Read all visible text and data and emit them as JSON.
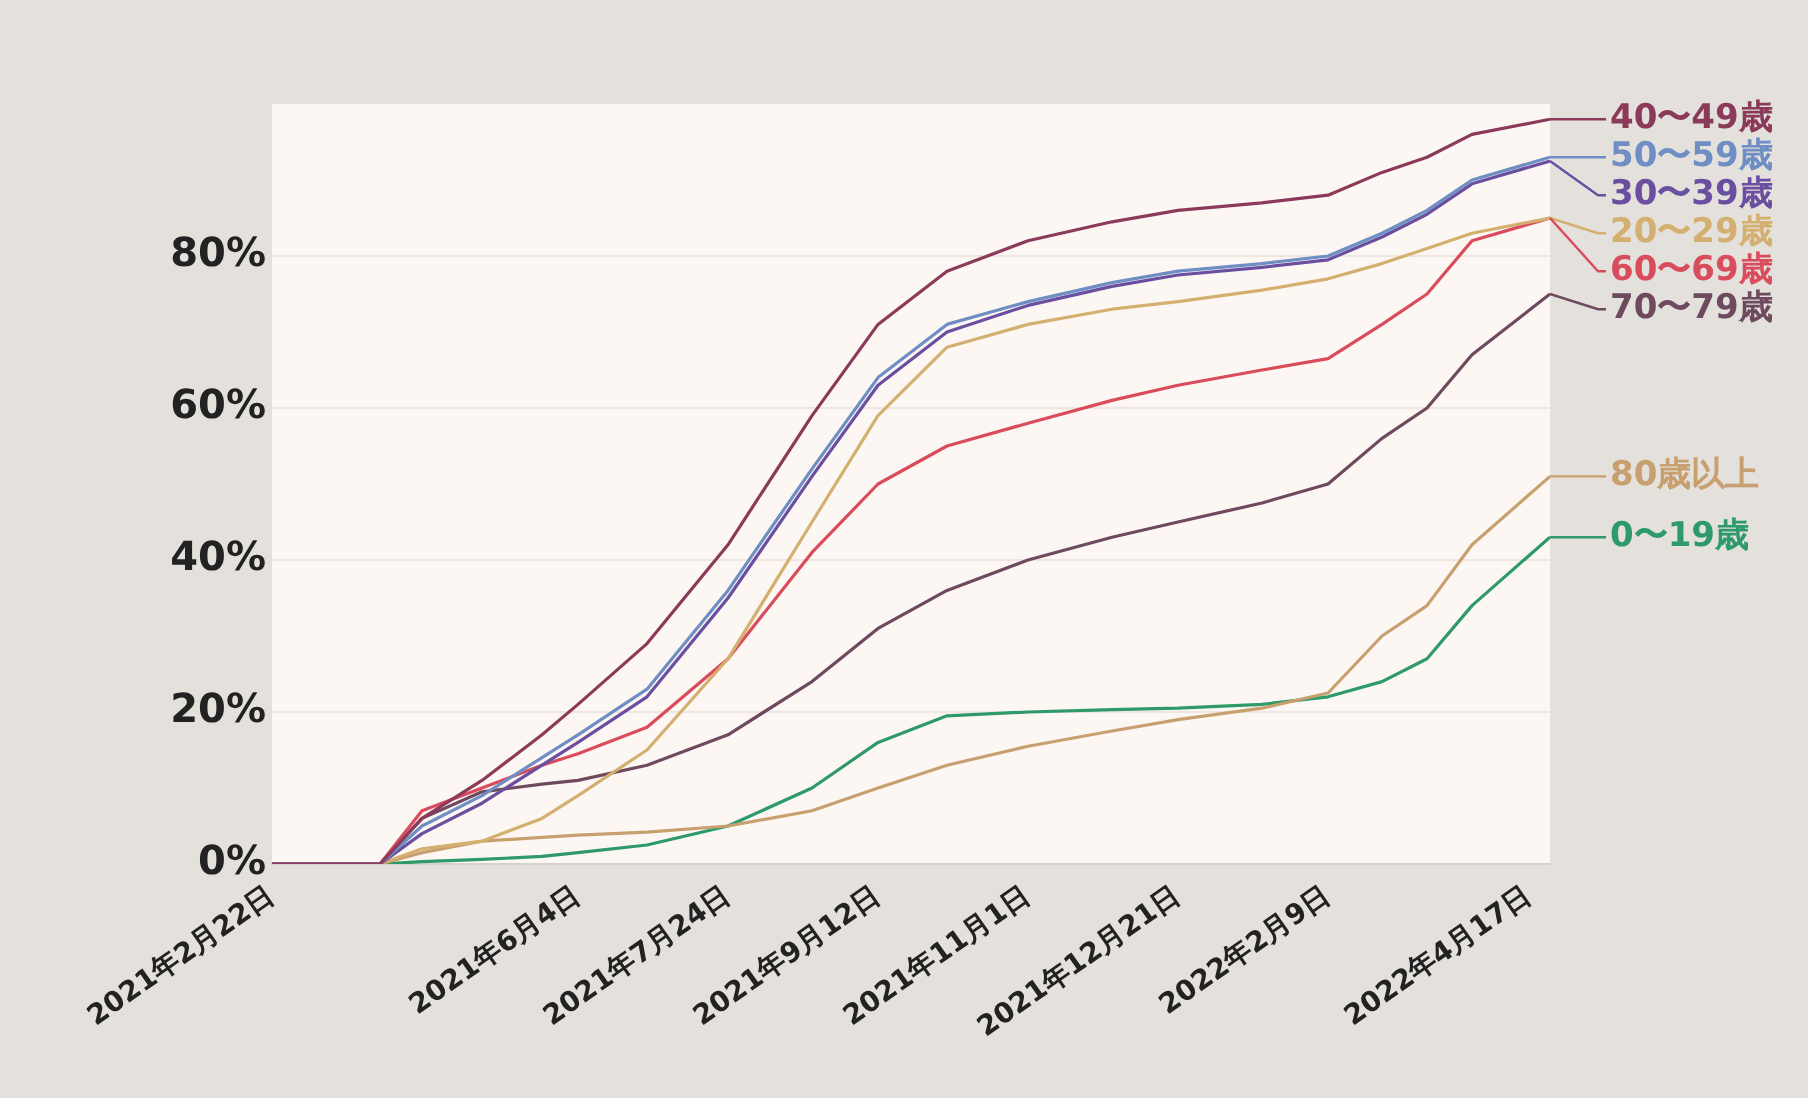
{
  "chart_data": {
    "type": "line",
    "x": [
      "2021-02-22",
      "2021-03-30",
      "2021-04-13",
      "2021-05-03",
      "2021-05-23",
      "2021-06-04",
      "2021-06-27",
      "2021-07-24",
      "2021-08-21",
      "2021-09-12",
      "2021-10-05",
      "2021-11-01",
      "2021-11-29",
      "2021-12-21",
      "2022-01-18",
      "2022-02-09",
      "2022-02-27",
      "2022-03-14",
      "2022-03-29",
      "2022-04-24"
    ],
    "series": [
      {
        "name": "40〜49歳",
        "color": "#8b3a5a",
        "values": [
          0,
          0,
          6,
          11,
          17,
          21,
          29,
          42,
          59,
          71,
          78,
          82,
          84.5,
          86,
          87,
          88,
          91,
          93,
          96,
          98
        ]
      },
      {
        "name": "50〜59歳",
        "color": "#6f8fc4",
        "values": [
          0,
          0,
          5,
          9,
          14,
          17,
          23,
          36,
          52,
          64,
          71,
          74,
          76.5,
          78,
          79,
          80,
          83,
          86,
          90,
          93
        ]
      },
      {
        "name": "30〜39歳",
        "color": "#6a4fa0",
        "values": [
          0,
          0,
          4,
          8,
          13,
          16,
          22,
          35,
          51,
          63,
          70,
          73.5,
          76,
          77.5,
          78.5,
          79.5,
          82.5,
          85.5,
          89.5,
          92.5
        ]
      },
      {
        "name": "20〜29歳",
        "color": "#d4b070",
        "values": [
          0,
          0,
          2,
          3,
          6,
          9,
          15,
          27,
          45,
          59,
          68,
          71,
          73,
          74,
          75.5,
          77,
          79,
          81,
          83,
          85
        ]
      },
      {
        "name": "60〜69歳",
        "color": "#d94c5c",
        "values": [
          0,
          0,
          7,
          10,
          13,
          14.5,
          18,
          27,
          41,
          50,
          55,
          58,
          61,
          63,
          65,
          66.5,
          71,
          75,
          82,
          85
        ]
      },
      {
        "name": "70〜79歳",
        "color": "#6e4a5e",
        "values": [
          0,
          0,
          6,
          9.5,
          10.5,
          11,
          13,
          17,
          24,
          31,
          36,
          40,
          43,
          45,
          47.5,
          50,
          56,
          60,
          67,
          75
        ]
      },
      {
        "name": "80歳以上",
        "color": "#c8a070",
        "values": [
          0,
          0,
          1.5,
          3,
          3.5,
          3.8,
          4.2,
          5,
          7,
          10,
          13,
          15.5,
          17.5,
          19,
          20.5,
          22.5,
          30,
          34,
          42,
          51
        ]
      },
      {
        "name": "0〜19歳",
        "color": "#2e9a6a",
        "values": [
          0,
          0,
          0.3,
          0.6,
          1,
          1.5,
          2.5,
          5,
          10,
          16,
          19.5,
          20,
          20.3,
          20.5,
          21,
          22,
          24,
          27,
          34,
          43
        ]
      }
    ],
    "xlim": [
      "2021-02-22",
      "2022-04-24"
    ],
    "xticks": [
      {
        "value": "2021-02-22",
        "label": "2021年2月22日"
      },
      {
        "value": "2021-06-04",
        "label": "2021年6月4日"
      },
      {
        "value": "2021-07-24",
        "label": "2021年7月24日"
      },
      {
        "value": "2021-09-12",
        "label": "2021年9月12日"
      },
      {
        "value": "2021-11-01",
        "label": "2021年11月1日"
      },
      {
        "value": "2021-12-21",
        "label": "2021年12月21日"
      },
      {
        "value": "2022-02-09",
        "label": "2022年2月9日"
      },
      {
        "value": "2022-04-17",
        "label": "2022年4月17日"
      }
    ],
    "ylim": [
      0,
      100
    ],
    "yticks": [
      {
        "value": 0,
        "label": "0%"
      },
      {
        "value": 20,
        "label": "20%"
      },
      {
        "value": 40,
        "label": "40%"
      },
      {
        "value": 60,
        "label": "60%"
      },
      {
        "value": 80,
        "label": "80%"
      }
    ],
    "grid": "y",
    "legend": "right",
    "marker": "none",
    "line_style": "solid"
  }
}
